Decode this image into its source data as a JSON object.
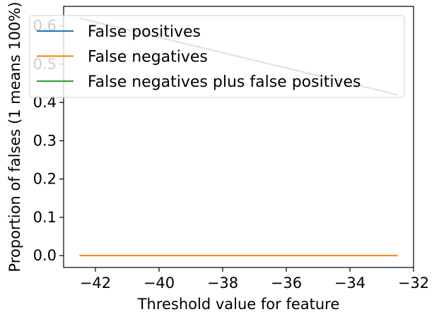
{
  "chart_data": {
    "type": "line",
    "title": "",
    "xlabel": "Threshold value for feature",
    "ylabel": "Proportion of falses (1 means 100%)",
    "xlim": [
      -43.0,
      -32.0
    ],
    "ylim": [
      -0.031,
      0.651
    ],
    "xticks": [
      -42,
      -40,
      -38,
      -36,
      -34,
      -32
    ],
    "xtick_labels": [
      "−42",
      "−40",
      "−38",
      "−36",
      "−34",
      "−32"
    ],
    "yticks": [
      0.0,
      0.1,
      0.2,
      0.3,
      0.4,
      0.5,
      0.6
    ],
    "ytick_labels": [
      "0.0",
      "0.1",
      "0.2",
      "0.3",
      "0.4",
      "0.5",
      "0.6"
    ],
    "grid": false,
    "legend_position": "top-right",
    "series": [
      {
        "name": "False positives",
        "color": "#1f77b4",
        "x": [
          -42.5,
          -32.5
        ],
        "y": [
          0.62,
          0.42
        ]
      },
      {
        "name": "False negatives",
        "color": "#ff7f0e",
        "x": [
          -42.5,
          -32.5
        ],
        "y": [
          0.0,
          0.0
        ]
      },
      {
        "name": "False negatives plus false positives",
        "color": "#2ca02c",
        "x": [
          -42.5,
          -32.5
        ],
        "y": [
          0.62,
          0.42
        ]
      }
    ]
  }
}
